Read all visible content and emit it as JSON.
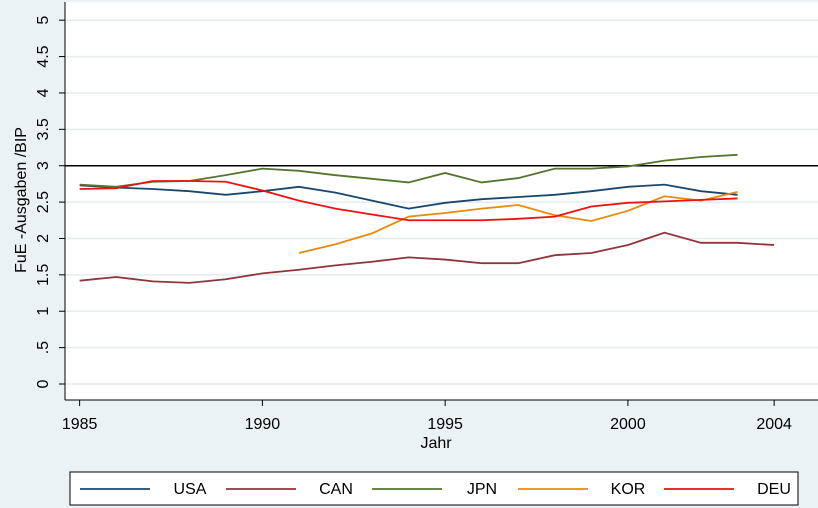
{
  "chart_data": {
    "type": "line",
    "ylabel": "FuE -Ausgaben /BIP",
    "xlabel": "Jahr",
    "x": [
      1985,
      1986,
      1987,
      1988,
      1989,
      1990,
      1991,
      1992,
      1993,
      1994,
      1995,
      1996,
      1997,
      1998,
      1999,
      2000,
      2001,
      2002,
      2003,
      2004
    ],
    "series": [
      {
        "name": "USA",
        "color": "#1a476f",
        "values": [
          2.73,
          2.7,
          2.68,
          2.65,
          2.6,
          2.65,
          2.71,
          2.63,
          2.52,
          2.41,
          2.49,
          2.54,
          2.57,
          2.6,
          2.65,
          2.71,
          2.74,
          2.65,
          2.6,
          null
        ]
      },
      {
        "name": "CAN",
        "color": "#90353b",
        "values": [
          1.42,
          1.47,
          1.41,
          1.39,
          1.44,
          1.52,
          1.57,
          1.63,
          1.68,
          1.74,
          1.71,
          1.66,
          1.66,
          1.77,
          1.8,
          1.91,
          2.08,
          1.94,
          1.94,
          1.91
        ]
      },
      {
        "name": "JPN",
        "color": "#55752f",
        "values": [
          2.74,
          2.71,
          2.78,
          2.79,
          2.87,
          2.96,
          2.93,
          2.87,
          2.82,
          2.77,
          2.9,
          2.77,
          2.83,
          2.96,
          2.96,
          2.99,
          3.07,
          3.12,
          3.15,
          null
        ]
      },
      {
        "name": "KOR",
        "color": "#e88a0c",
        "values": [
          null,
          null,
          null,
          null,
          null,
          null,
          1.8,
          1.92,
          2.07,
          2.3,
          2.35,
          2.41,
          2.46,
          2.32,
          2.24,
          2.38,
          2.58,
          2.52,
          2.64,
          null
        ]
      },
      {
        "name": "DEU",
        "color": "#ee1111",
        "values": [
          2.68,
          2.69,
          2.79,
          2.79,
          2.78,
          2.66,
          2.52,
          2.41,
          2.33,
          2.25,
          2.25,
          2.25,
          2.27,
          2.3,
          2.44,
          2.49,
          2.51,
          2.53,
          2.55,
          null
        ]
      }
    ],
    "xlim": [
      1984.6,
      2005.2
    ],
    "xticks": [
      1985,
      1990,
      1995,
      2000,
      2004
    ],
    "ylim": [
      -0.22,
      5.25
    ],
    "yticks": [
      0,
      {
        "value": 0.5,
        "label": ".5"
      },
      1,
      1.5,
      2,
      2.5,
      3,
      3.5,
      4,
      4.5,
      5
    ],
    "yline": 3,
    "grid": true,
    "legend": "bottom"
  }
}
